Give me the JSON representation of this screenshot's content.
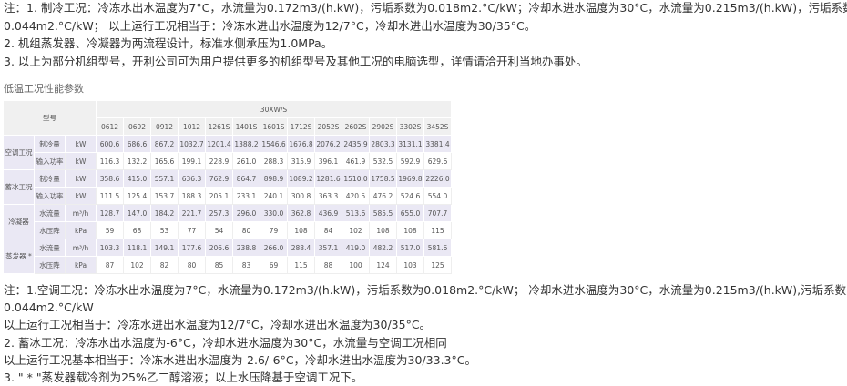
{
  "top_notes": [
    "注：1. 制冷工况：冷冻水出水温度为7°C，水流量为0.172m3/(h.kW)，污垢系数为0.018m2.°C/kW；冷却水进水温度为30°C，水流量为0.215m3/(h.kW)，污垢系数为",
    "0.044m2.°C/kW；  以上运行工况相当于：冷冻水进出水温度为12/7°C，冷却水进出水温度为30/35°C。",
    "2.    机组蒸发器、冷凝器为两流程设计，标准水侧承压为1.0MPa。",
    "3.    以上为部分机组型号，开利公司可为用户提供更多的机组型号及其他工况的电脑选型，详情请洽开利当地办事处。"
  ],
  "table_title": "低温工况性能参数",
  "table": {
    "model_label": "型号",
    "series": "30XW/S",
    "models": [
      "0612",
      "0692",
      "0912",
      "1012",
      "1261S",
      "1401S",
      "1601S",
      "1712S",
      "2052S",
      "2602S",
      "2902S",
      "3302S",
      "3452S"
    ],
    "groups": [
      {
        "name": "空调工况",
        "rows": [
          {
            "item": "制冷量",
            "unit": "kW",
            "values": [
              "600.6",
              "686.6",
              "867.2",
              "1032.7",
              "1201.4",
              "1388.2",
              "1546.6",
              "1676.8",
              "2076.2",
              "2435.9",
              "2803.3",
              "3131.1",
              "3381.4"
            ]
          },
          {
            "item": "输入功率",
            "unit": "kW",
            "values": [
              "116.3",
              "132.2",
              "165.6",
              "199.1",
              "228.9",
              "261.0",
              "288.3",
              "315.9",
              "396.1",
              "461.9",
              "532.5",
              "592.9",
              "629.6"
            ]
          }
        ]
      },
      {
        "name": "蓄冰工况",
        "rows": [
          {
            "item": "制冷量",
            "unit": "kW",
            "values": [
              "358.6",
              "415.0",
              "557.1",
              "636.3",
              "762.9",
              "864.7",
              "898.9",
              "1089.2",
              "1281.6",
              "1510.0",
              "1758.5",
              "1969.8",
              "2226.0"
            ]
          },
          {
            "item": "输入功率",
            "unit": "kW",
            "values": [
              "111.5",
              "125.4",
              "153.7",
              "188.3",
              "205.1",
              "233.1",
              "240.1",
              "300.8",
              "363.3",
              "420.5",
              "476.2",
              "524.6",
              "554.0"
            ]
          }
        ]
      },
      {
        "name": "冷凝器",
        "rows": [
          {
            "item": "水流量",
            "unit": "m³/h",
            "values": [
              "128.7",
              "147.0",
              "184.2",
              "221.7",
              "257.3",
              "296.0",
              "330.0",
              "362.8",
              "436.9",
              "513.6",
              "585.5",
              "655.0",
              "707.7"
            ]
          },
          {
            "item": "水压降",
            "unit": "kPa",
            "values": [
              "59",
              "68",
              "53",
              "77",
              "54",
              "80",
              "79",
              "108",
              "84",
              "102",
              "108",
              "108",
              "115"
            ]
          }
        ]
      },
      {
        "name": "蒸发器 *",
        "rows": [
          {
            "item": "水流量",
            "unit": "m³/h",
            "values": [
              "103.3",
              "118.1",
              "149.1",
              "177.6",
              "206.6",
              "238.8",
              "266.0",
              "288.4",
              "357.1",
              "419.0",
              "482.2",
              "517.0",
              "581.6"
            ]
          },
          {
            "item": "水压降",
            "unit": "kPa",
            "values": [
              "87",
              "102",
              "82",
              "80",
              "85",
              "83",
              "69",
              "115",
              "88",
              "100",
              "124",
              "103",
              "125"
            ]
          }
        ]
      }
    ]
  },
  "bottom_notes": [
    "注：1.空调工况：冷冻水出水温度为7°C，水流量为0.172m3/(h.kW)，污垢系数为0.018m2.°C/kW；  冷却水进水温度为30°C，水流量为0.215m3/(h.kW),污垢系数为",
    "0.044m2.°C/kW",
    "以上运行工况相当于：冷冻水进出水温度为12/7°C，冷却水进出水温度为30/35°C。",
    "2.    蓄冰工况：冷冻水出水温度为-6°C，冷却水进水温度为30°C，水流量与空调工况相同",
    "以上运行工况基本相当于：冷冻水进出水温度为-2.6/-6°C，冷却水进出水温度为30/33.3°C。",
    "3.    \" * \"蒸发器载冷剂为25%乙二醇溶液；以上水压降基于空调工况下。"
  ]
}
